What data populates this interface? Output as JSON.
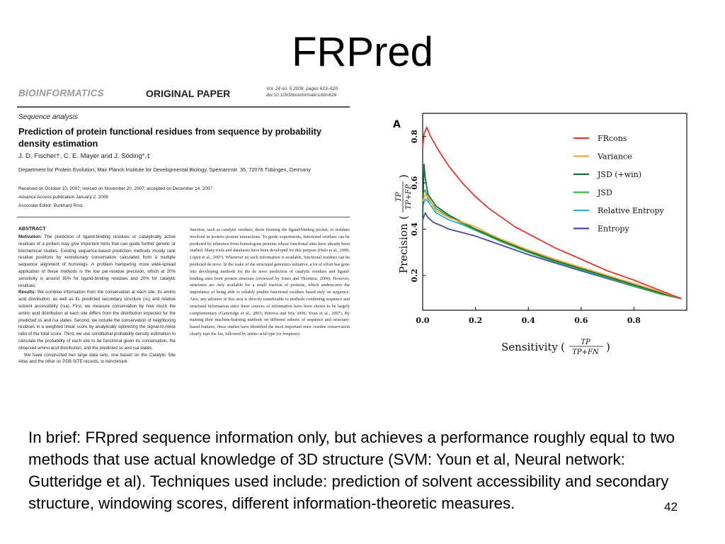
{
  "slide": {
    "title": "FRPred",
    "caption": "In brief: FRpred sequence information only, but achieves a performance roughly equal to two methods that use actual knowledge of 3D structure (SVM: Youn et al, Neural network: Gutteridge et al). Techniques used include: prediction of solvent accessibility and secondary structure, windowing scores, different information-theoretic measures.",
    "page_number": "42"
  },
  "paper": {
    "journal": "BIOINFORMATICS",
    "type": "ORIGINAL PAPER",
    "volume": "Vol. 24 no. 5 2008, pages 613–620",
    "doi": "doi:10.1093/bioinformatics/btm626",
    "section": "Sequence analysis",
    "title": "Prediction of protein functional residues from sequence by probability density estimation",
    "authors": "J. D. Fischer†, C. E. Mayer and J. Söding*,‡",
    "affiliation": "Department for Protein Evolution, Max Planck Institute for Developmental Biology, Spemannstr. 35, 72076 Tübingen, Germany",
    "received": "Received on October 10, 2007; revised on November 20, 2007; accepted on December 14, 2007",
    "advance": "Advance Access publication January 2, 2008",
    "editor": "Associate Editor: Burkhard Rost",
    "abstract_heading": "ABSTRACT",
    "motivation_label": "Motivation:",
    "motivation_text": " The prediction of ligand-binding residues or catalytically active residues of a protein may give important hints that can guide further genetic or biochemical studies. Existing sequence-based prediction methods mostly rank residue positions by evolutionary conservation calculated from a multiple sequence alignment of homologs. A problem hampering more wide-spread application of these methods is the low per-residue precision, which at 20% sensitivity is around 35% for ligand-binding residues and 20% for catalytic residues.",
    "results_label": "Results:",
    "results_text": " We combine information from the conservation at each site, its amino acid distribution, as well as its predicted secondary structure (ss) and relative solvent accessibility (rsa). First, we measure conservation by how much the amino acid distribution at each site differs from the distribution expected for the predicted ss and rsa states. Second, we include the conservation of neighboring residues in a weighted linear score by analytically optimizing the signal-to-noise ratio of the total score. Third, we use conditional probability density estimation to calculate the probability of each site to be functional given its conservation, the observed amino acid distribution, and the predicted ss and rsa states.",
    "results_text2": "We have constructed two large data sets, one based on the Catalytic Site Atlas and the other on PDB SITE records, to benchmark",
    "right_column": "function, such as catalytic residues, those forming the ligand-binding pocket, or residues involved in protein–protein interactions. To guide experiments, functional residues can be predicted by inference from homologous proteins whose functional sites have already been studied. Many tools and databases have been developed for this purpose (Hulo et al., 2006; López et al., 2007). Whenever no such information is available, functional residues can be predicted de novo. In the wake of the structural genomics initiative, a lot of effort has gone into developing methods for the de novo prediction of catalytic residues and ligand-binding sites from protein structure (reviewed by Jones and Thornton, 2004). However, structures are only available for a small fraction of proteins, which underscores the importance of being able to reliably predict functional residues based only on sequence. Also, any advance in this area is directly transferable to methods combining sequence and structural information since these sources of information have been shown to be largely complementary (Gutteridge et al., 2003; Petrova and Wu, 2006; Youn et al., 2007). By training their machine-learning methods on different subsets of sequence and structure-based features, these studies have identified the most important ones: residue conservation clearly tops the list, followed by amino acid type (or frequency"
  },
  "chart_data": {
    "type": "line",
    "panel_label": "A",
    "xlabel_text": "Sensitivity",
    "xlabel_formula": {
      "num": "TP",
      "den": "TP+FN"
    },
    "ylabel_text": "Precision",
    "ylabel_formula": {
      "num": "TP",
      "den": "TP+FP"
    },
    "xlim": [
      0,
      1.0
    ],
    "ylim": [
      0.05,
      0.9
    ],
    "xticks": [
      "0.0",
      "0.2",
      "0.4",
      "0.6",
      "0.8"
    ],
    "yticks": [
      "0.2",
      "0.4",
      "0.6",
      "0.8"
    ],
    "legend_position": "top-right",
    "grid": false,
    "series": [
      {
        "name": "FRcons",
        "color": "#e8372c",
        "points": [
          [
            0.0,
            0.75
          ],
          [
            0.005,
            0.81
          ],
          [
            0.015,
            0.84
          ],
          [
            0.03,
            0.8
          ],
          [
            0.06,
            0.74
          ],
          [
            0.1,
            0.67
          ],
          [
            0.15,
            0.6
          ],
          [
            0.2,
            0.54
          ],
          [
            0.25,
            0.49
          ],
          [
            0.3,
            0.45
          ],
          [
            0.35,
            0.41
          ],
          [
            0.4,
            0.38
          ],
          [
            0.5,
            0.32
          ],
          [
            0.6,
            0.27
          ],
          [
            0.7,
            0.22
          ],
          [
            0.8,
            0.18
          ],
          [
            0.9,
            0.135
          ],
          [
            0.98,
            0.1
          ]
        ]
      },
      {
        "name": "Variance",
        "color": "#f2a63a",
        "points": [
          [
            0.0,
            0.52
          ],
          [
            0.01,
            0.55
          ],
          [
            0.02,
            0.54
          ],
          [
            0.05,
            0.48
          ],
          [
            0.1,
            0.45
          ],
          [
            0.15,
            0.43
          ],
          [
            0.2,
            0.41
          ],
          [
            0.25,
            0.38
          ],
          [
            0.3,
            0.355
          ],
          [
            0.4,
            0.31
          ],
          [
            0.5,
            0.27
          ],
          [
            0.6,
            0.235
          ],
          [
            0.7,
            0.2
          ],
          [
            0.8,
            0.165
          ],
          [
            0.9,
            0.13
          ],
          [
            0.98,
            0.1
          ]
        ]
      },
      {
        "name": "JSD (+win)",
        "color": "#1a6b3a",
        "points": [
          [
            0.0,
            0.45
          ],
          [
            0.005,
            0.68
          ],
          [
            0.01,
            0.62
          ],
          [
            0.02,
            0.55
          ],
          [
            0.05,
            0.5
          ],
          [
            0.1,
            0.46
          ],
          [
            0.15,
            0.43
          ],
          [
            0.2,
            0.4
          ],
          [
            0.25,
            0.375
          ],
          [
            0.3,
            0.35
          ],
          [
            0.4,
            0.305
          ],
          [
            0.5,
            0.265
          ],
          [
            0.6,
            0.23
          ],
          [
            0.7,
            0.195
          ],
          [
            0.8,
            0.16
          ],
          [
            0.9,
            0.125
          ],
          [
            0.98,
            0.1
          ]
        ]
      },
      {
        "name": "JSD",
        "color": "#35b54a",
        "points": [
          [
            0.0,
            0.55
          ],
          [
            0.01,
            0.57
          ],
          [
            0.02,
            0.53
          ],
          [
            0.05,
            0.49
          ],
          [
            0.1,
            0.455
          ],
          [
            0.15,
            0.425
          ],
          [
            0.2,
            0.395
          ],
          [
            0.25,
            0.37
          ],
          [
            0.3,
            0.345
          ],
          [
            0.4,
            0.3
          ],
          [
            0.5,
            0.26
          ],
          [
            0.6,
            0.225
          ],
          [
            0.7,
            0.19
          ],
          [
            0.8,
            0.155
          ],
          [
            0.9,
            0.12
          ],
          [
            0.98,
            0.1
          ]
        ]
      },
      {
        "name": "Relative Entropy",
        "color": "#2bb0d8",
        "points": [
          [
            0.0,
            0.5
          ],
          [
            0.01,
            0.53
          ],
          [
            0.02,
            0.52
          ],
          [
            0.05,
            0.47
          ],
          [
            0.1,
            0.44
          ],
          [
            0.15,
            0.42
          ],
          [
            0.2,
            0.395
          ],
          [
            0.25,
            0.37
          ],
          [
            0.3,
            0.345
          ],
          [
            0.4,
            0.3
          ],
          [
            0.5,
            0.26
          ],
          [
            0.6,
            0.225
          ],
          [
            0.7,
            0.19
          ],
          [
            0.8,
            0.157
          ],
          [
            0.9,
            0.125
          ],
          [
            0.98,
            0.1
          ]
        ]
      },
      {
        "name": "Entropy",
        "color": "#4a4aa8",
        "points": [
          [
            0.0,
            0.44
          ],
          [
            0.01,
            0.47
          ],
          [
            0.02,
            0.45
          ],
          [
            0.04,
            0.43
          ],
          [
            0.06,
            0.42
          ],
          [
            0.1,
            0.4
          ],
          [
            0.15,
            0.385
          ],
          [
            0.2,
            0.37
          ],
          [
            0.25,
            0.35
          ],
          [
            0.3,
            0.33
          ],
          [
            0.4,
            0.29
          ],
          [
            0.5,
            0.255
          ],
          [
            0.6,
            0.22
          ],
          [
            0.7,
            0.187
          ],
          [
            0.8,
            0.153
          ],
          [
            0.9,
            0.12
          ],
          [
            0.98,
            0.1
          ]
        ]
      }
    ]
  }
}
